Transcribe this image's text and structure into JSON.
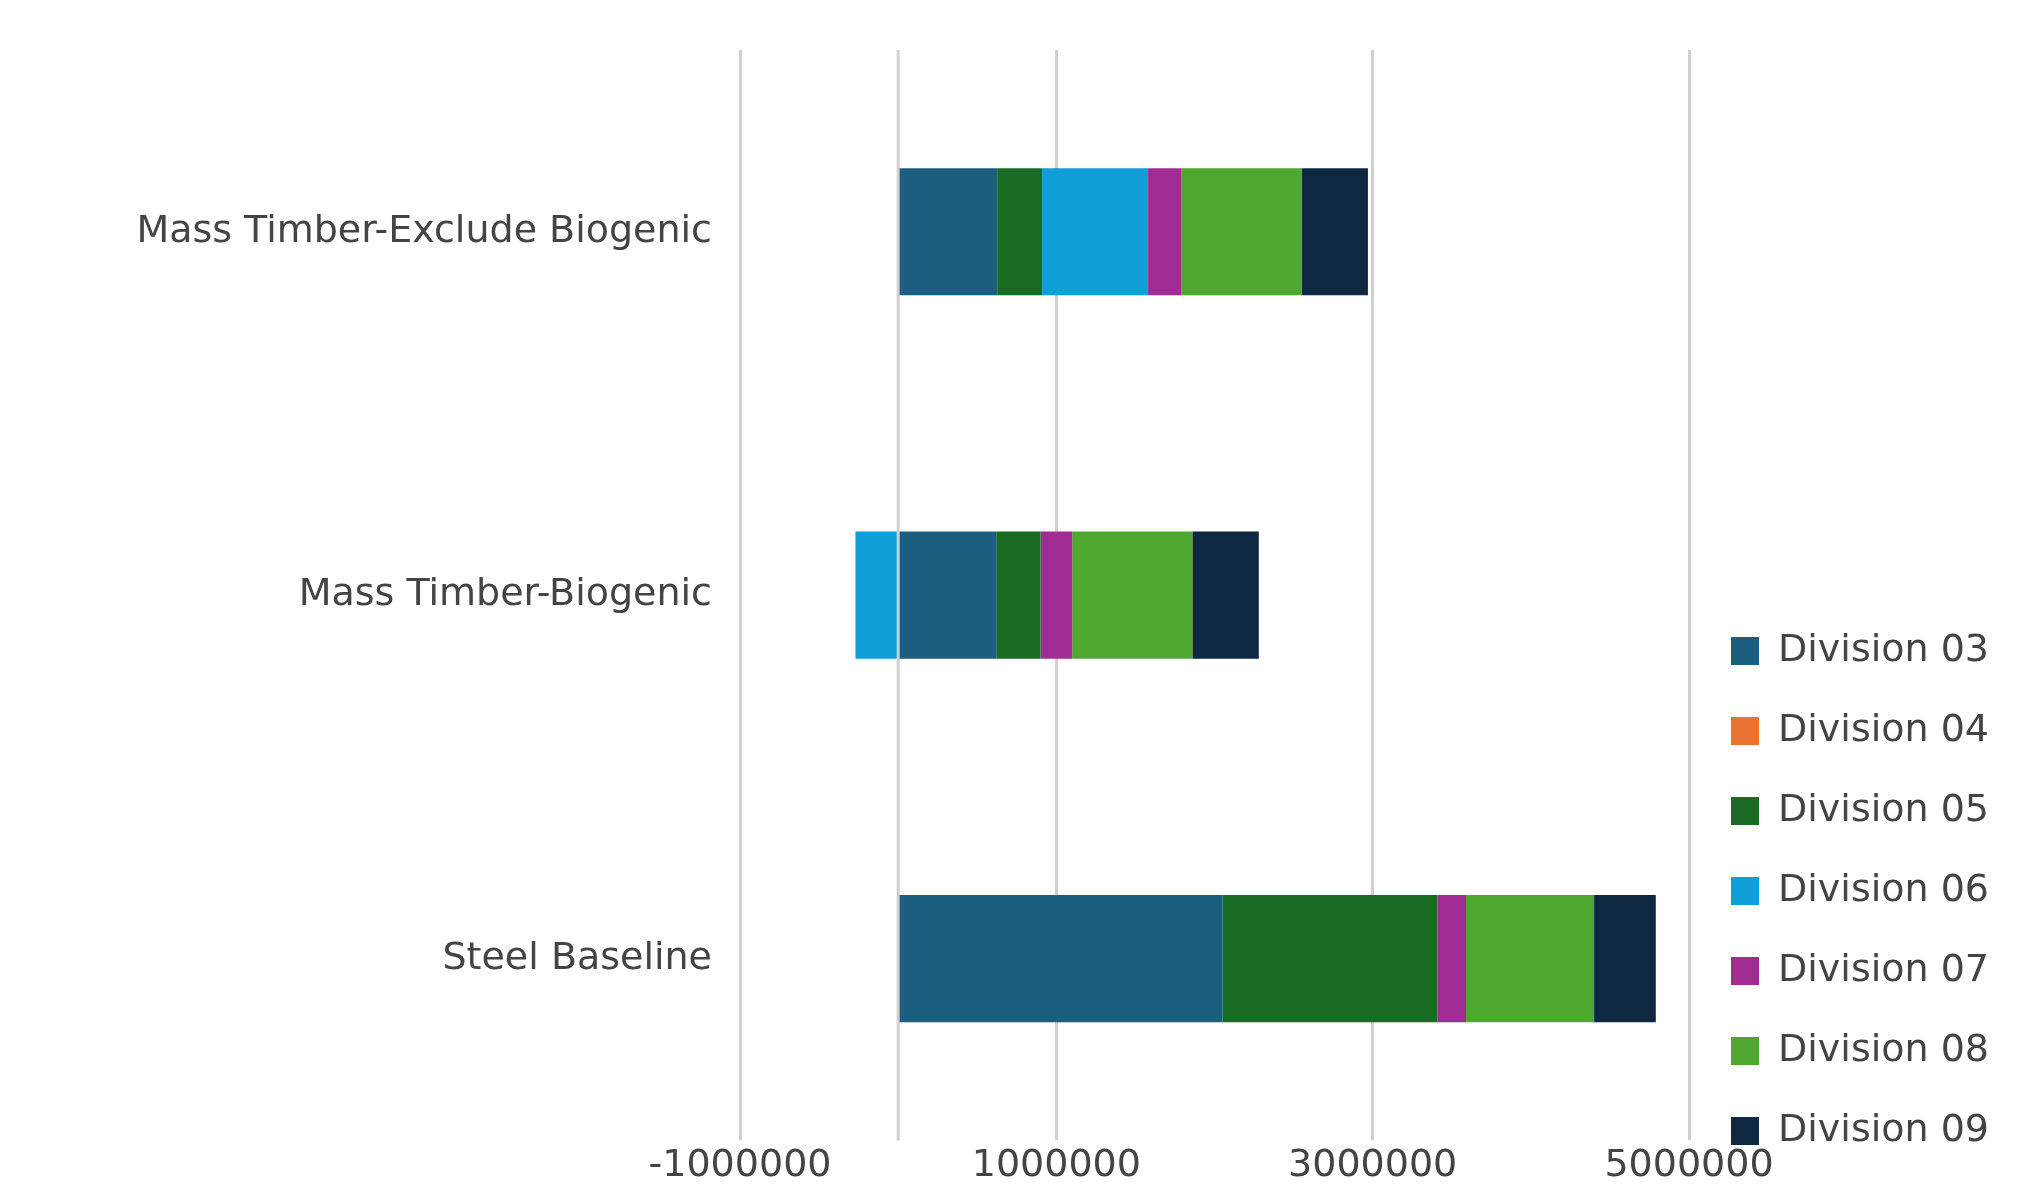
{
  "chart_data": {
    "type": "bar",
    "orientation": "horizontal",
    "stacked": true,
    "categories": [
      "Mass Timber-Exclude Biogenic",
      "Mass Timber-Biogenic",
      "Steel Baseline"
    ],
    "series": [
      {
        "name": "Division 03",
        "color": "#1b5e80",
        "values": [
          630000,
          620000,
          2050000
        ]
      },
      {
        "name": "Division 04",
        "color": "#e97132",
        "values": [
          0,
          0,
          0
        ]
      },
      {
        "name": "Division 05",
        "color": "#196b24",
        "values": [
          280000,
          280000,
          1360000
        ]
      },
      {
        "name": "Division 06",
        "color": "#0f9ed5",
        "values": [
          670000,
          -270000,
          0
        ]
      },
      {
        "name": "Division 07",
        "color": "#a02b93",
        "values": [
          210000,
          200000,
          180000
        ]
      },
      {
        "name": "Division 08",
        "color": "#4ea72e",
        "values": [
          760000,
          760000,
          810000
        ]
      },
      {
        "name": "Division 09",
        "color": "#0e2841",
        "values": [
          420000,
          420000,
          390000
        ]
      }
    ],
    "xlim": [
      -1000000,
      5000000
    ],
    "xticks": [
      -1000000,
      1000000,
      3000000,
      5000000
    ],
    "ref_lines": [
      {
        "axis": "x",
        "value": 0
      }
    ],
    "grid": "x",
    "legend": "bottom right"
  }
}
